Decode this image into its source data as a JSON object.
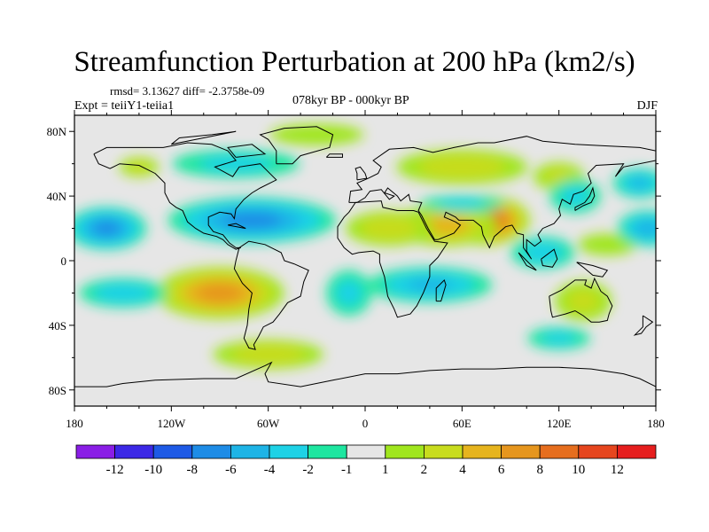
{
  "header": {
    "title": "Streamfunction Perturbation at 200 hPa (km2/s)",
    "stats": "rmsd= 3.13627 diff= -2.3758e-09",
    "experiment": "Expt = teiiY1-teiia1",
    "period": "078kyr BP - 000kyr BP",
    "season": "DJF"
  },
  "chart_data": {
    "type": "heatmap",
    "title": "Streamfunction Perturbation at 200 hPa (km2/s)",
    "projection": "cylindrical-equidistant",
    "xlim": [
      -180,
      180
    ],
    "ylim": [
      -90,
      90
    ],
    "x_ticks": [
      {
        "value": -180,
        "label": "180"
      },
      {
        "value": -120,
        "label": "120W"
      },
      {
        "value": -60,
        "label": "60W"
      },
      {
        "value": 0,
        "label": "0"
      },
      {
        "value": 60,
        "label": "60E"
      },
      {
        "value": 120,
        "label": "120E"
      },
      {
        "value": 180,
        "label": "180"
      }
    ],
    "y_ticks": [
      {
        "value": 80,
        "label": "80N"
      },
      {
        "value": 40,
        "label": "40N"
      },
      {
        "value": 0,
        "label": "0"
      },
      {
        "value": -40,
        "label": "40S"
      },
      {
        "value": -80,
        "label": "80S"
      }
    ],
    "colorbar": {
      "labels": [
        "-12",
        "-10",
        "-8",
        "-6",
        "-4",
        "-2",
        "-1",
        "1",
        "2",
        "4",
        "6",
        "8",
        "10",
        "12"
      ],
      "colors": [
        "#8a1ee6",
        "#3c28e6",
        "#1e5ae6",
        "#1e8ce6",
        "#1eb4e6",
        "#1ed2e6",
        "#1ee6a0",
        "#e6e6e6",
        "#a0e61e",
        "#c8dc1e",
        "#e6b41e",
        "#e6961e",
        "#e66e1e",
        "#e6461e",
        "#e61e1e"
      ]
    },
    "features": [
      {
        "lon": 75,
        "lat": 25,
        "value": 12,
        "rx": 28,
        "ry": 16
      },
      {
        "lon": 50,
        "lat": 22,
        "value": 6,
        "rx": 34,
        "ry": 14
      },
      {
        "lon": 15,
        "lat": 20,
        "value": 4,
        "rx": 30,
        "ry": 12
      },
      {
        "lon": 60,
        "lat": 58,
        "value": 4,
        "rx": 45,
        "ry": 12
      },
      {
        "lon": 120,
        "lat": 52,
        "value": 3,
        "rx": 18,
        "ry": 10
      },
      {
        "lon": -90,
        "lat": -20,
        "value": 8,
        "rx": 42,
        "ry": 17
      },
      {
        "lon": -60,
        "lat": -58,
        "value": 4,
        "rx": 38,
        "ry": 10
      },
      {
        "lon": 135,
        "lat": -25,
        "value": 3,
        "rx": 20,
        "ry": 14
      },
      {
        "lon": -30,
        "lat": 78,
        "value": 2,
        "rx": 35,
        "ry": 8
      },
      {
        "lon": -140,
        "lat": 58,
        "value": 3,
        "rx": 14,
        "ry": 7
      },
      {
        "lon": 150,
        "lat": 10,
        "value": 2,
        "rx": 22,
        "ry": 8
      },
      {
        "lon": -160,
        "lat": 20,
        "value": -8,
        "rx": 26,
        "ry": 14
      },
      {
        "lon": 175,
        "lat": 20,
        "value": -6,
        "rx": 20,
        "ry": 12
      },
      {
        "lon": -70,
        "lat": 25,
        "value": -8,
        "rx": 55,
        "ry": 15
      },
      {
        "lon": -80,
        "lat": 60,
        "value": -3,
        "rx": 45,
        "ry": 10
      },
      {
        "lon": 130,
        "lat": 40,
        "value": -3,
        "rx": 18,
        "ry": 12
      },
      {
        "lon": 170,
        "lat": 48,
        "value": -5,
        "rx": 18,
        "ry": 10
      },
      {
        "lon": 40,
        "lat": -15,
        "value": -5,
        "rx": 42,
        "ry": 12
      },
      {
        "lon": 110,
        "lat": 5,
        "value": -4,
        "rx": 22,
        "ry": 11
      },
      {
        "lon": -150,
        "lat": -20,
        "value": -4,
        "rx": 30,
        "ry": 10
      },
      {
        "lon": -10,
        "lat": -20,
        "value": -3,
        "rx": 16,
        "ry": 16
      },
      {
        "lon": 120,
        "lat": -48,
        "value": -3,
        "rx": 22,
        "ry": 8
      },
      {
        "lon": 60,
        "lat": 35,
        "value": -3,
        "rx": 30,
        "ry": 6
      }
    ]
  }
}
